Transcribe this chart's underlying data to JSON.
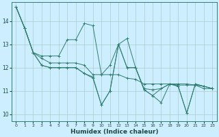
{
  "title": "",
  "xlabel": "Humidex (Indice chaleur)",
  "bg_color": "#cceeff",
  "grid_color": "#aacccc",
  "line_color": "#2e7d6e",
  "xlim": [
    -0.5,
    23.5
  ],
  "ylim": [
    9.7,
    14.8
  ],
  "yticks": [
    10,
    11,
    12,
    13,
    14
  ],
  "xticks": [
    0,
    1,
    2,
    3,
    4,
    5,
    6,
    7,
    8,
    9,
    10,
    11,
    12,
    13,
    14,
    15,
    16,
    17,
    18,
    19,
    20,
    21,
    22,
    23
  ],
  "series": [
    [
      14.6,
      13.7,
      12.65,
      12.5,
      12.5,
      12.5,
      13.2,
      13.2,
      13.9,
      13.8,
      11.7,
      12.1,
      13.0,
      13.25,
      12.0,
      11.1,
      11.05,
      11.1,
      11.3,
      11.25,
      11.25,
      11.25,
      11.2,
      11.1
    ],
    [
      14.6,
      13.7,
      12.65,
      12.4,
      12.2,
      12.2,
      12.2,
      12.2,
      12.1,
      11.7,
      11.7,
      11.7,
      11.7,
      11.55,
      11.5,
      11.3,
      11.3,
      11.3,
      11.3,
      11.3,
      11.3,
      11.25,
      11.1,
      11.1
    ],
    [
      14.6,
      13.7,
      12.65,
      12.1,
      12.0,
      12.0,
      12.0,
      12.0,
      11.75,
      11.6,
      10.4,
      11.0,
      13.0,
      12.0,
      12.0,
      11.05,
      10.8,
      11.1,
      11.3,
      11.2,
      10.05,
      11.3,
      11.2,
      11.1
    ],
    [
      14.6,
      13.7,
      12.65,
      12.1,
      12.0,
      12.0,
      12.0,
      12.0,
      11.75,
      11.55,
      10.4,
      11.0,
      13.0,
      12.0,
      12.0,
      11.05,
      10.8,
      10.5,
      11.3,
      11.2,
      10.05,
      11.3,
      11.2,
      11.1
    ]
  ]
}
